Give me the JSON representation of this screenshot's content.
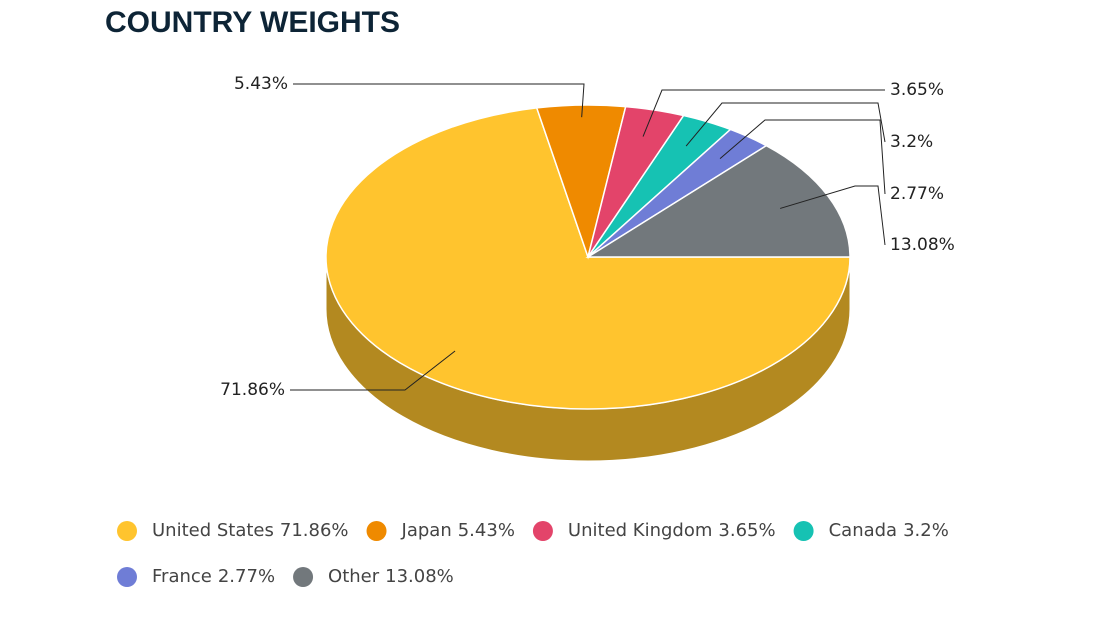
{
  "chart_data": {
    "type": "pie",
    "style": "3d",
    "title": "COUNTRY WEIGHTS",
    "categories": [
      "United States",
      "Japan",
      "United Kingdom",
      "Canada",
      "France",
      "Other"
    ],
    "values": [
      71.86,
      5.43,
      3.65,
      3.2,
      2.77,
      13.08
    ],
    "value_labels": [
      "71.86%",
      "5.43%",
      "3.65%",
      "3.2%",
      "2.77%",
      "13.08%"
    ],
    "colors": [
      "#ffc42e",
      "#ef8a00",
      "#e3446a",
      "#16c2b3",
      "#6f7dd6",
      "#72787c"
    ],
    "legend": "bottom"
  }
}
